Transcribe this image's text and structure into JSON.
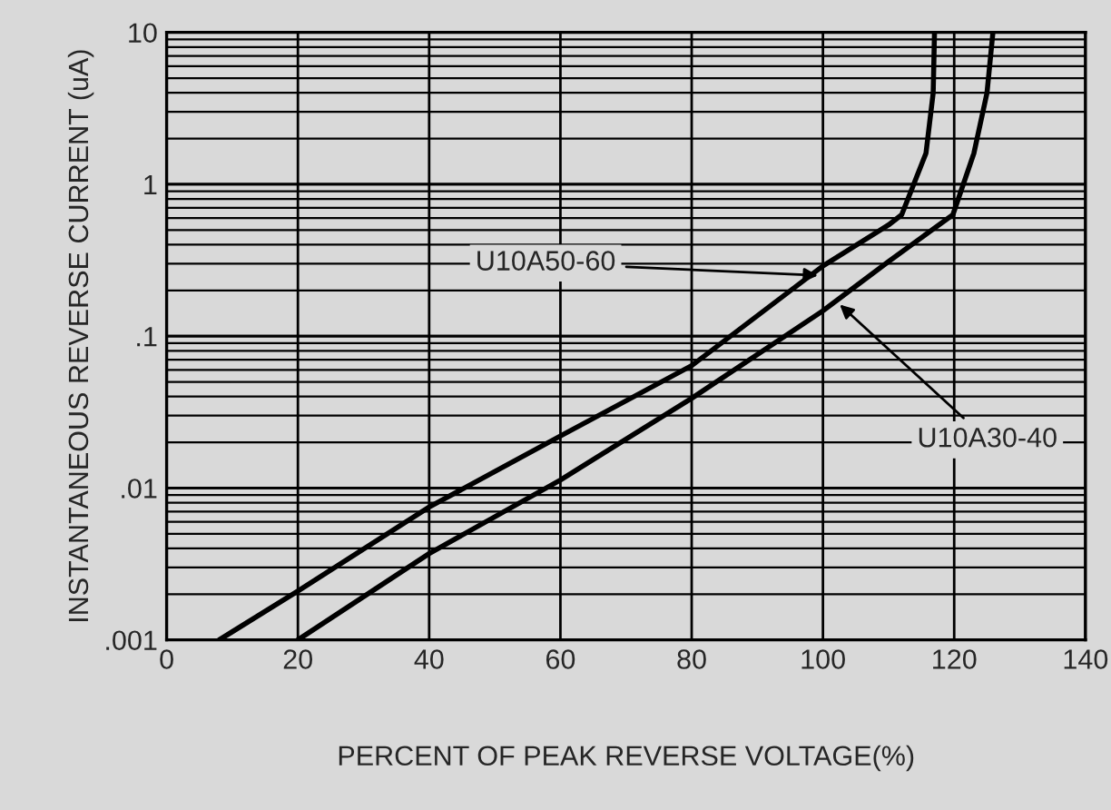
{
  "chart_data": {
    "type": "line",
    "xlabel": "PERCENT OF PEAK REVERSE VOLTAGE(%)",
    "ylabel": "INSTANTANEOUS REVERSE CURRENT (uA)",
    "series": [
      {
        "color": "#000000",
        "x": [
          8,
          20,
          40,
          60,
          80,
          100,
          110,
          112,
          115.7,
          116.8,
          117
        ],
        "values": [
          0.001,
          0.0021,
          0.0075,
          0.022,
          0.064,
          0.29,
          0.54,
          0.63,
          1.6,
          4,
          10
        ]
      },
      {
        "color": "#000000",
        "x": [
          20,
          40,
          60,
          80,
          100,
          110,
          119.8,
          123,
          125,
          125.9
        ],
        "values": [
          0.001,
          0.0037,
          0.0113,
          0.039,
          0.147,
          0.31,
          0.63,
          1.6,
          4,
          10
        ]
      }
    ],
    "annotations": [
      {
        "text": "U10A50-60",
        "x": 100,
        "y": 0.25
      },
      {
        "text": "U10A30-40",
        "x": 102,
        "y": 0.17
      }
    ],
    "log": "y",
    "xlim": [
      0,
      140
    ],
    "xticks": [
      0,
      20,
      40,
      60,
      80,
      100,
      120,
      140
    ],
    "ylim": [
      0.001,
      10
    ],
    "yticks": [
      {
        "value": 0.001,
        "label": ".001"
      },
      {
        "value": 0.01,
        "label": ".01"
      },
      {
        "value": 0.1,
        "label": ".1"
      },
      1,
      10
    ],
    "grid": true,
    "legend": false,
    "marker": "none",
    "line_style": "solid"
  }
}
